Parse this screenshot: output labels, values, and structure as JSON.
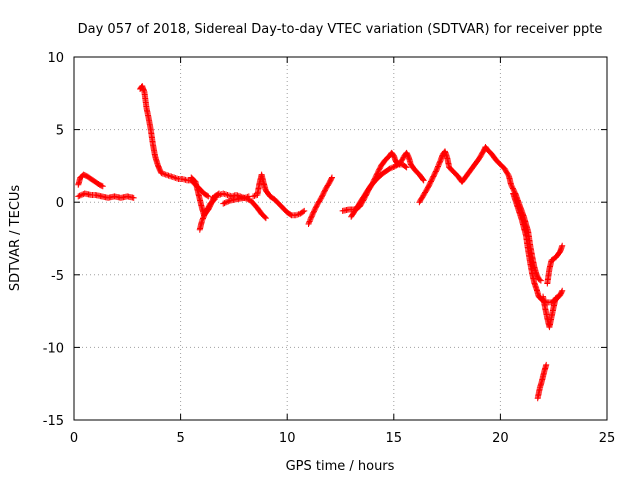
{
  "chart_data": {
    "type": "scatter",
    "title": "Day 057 of 2018, Sidereal Day-to-day VTEC variation (SDTVAR) for receiver ppte",
    "xlabel": "GPS time / hours",
    "ylabel": "SDTVAR / TECUs",
    "xlim": [
      0,
      25
    ],
    "ylim": [
      -15,
      10
    ],
    "xticks": [
      0,
      5,
      10,
      15,
      20,
      25
    ],
    "yticks": [
      -15,
      -10,
      -5,
      0,
      5,
      10
    ],
    "grid": true,
    "legend": "none",
    "marker": "plus",
    "color": "#ff0000",
    "series": [
      {
        "segments": [
          [
            [
              0.2,
              1.2
            ],
            [
              0.3,
              1.7
            ],
            [
              0.45,
              1.9
            ],
            [
              0.6,
              1.8
            ],
            [
              0.8,
              1.6
            ],
            [
              1.0,
              1.4
            ],
            [
              1.2,
              1.2
            ],
            [
              1.35,
              1.1
            ]
          ],
          [
            [
              0.2,
              0.4
            ],
            [
              0.5,
              0.6
            ],
            [
              0.8,
              0.5
            ],
            [
              1.0,
              0.5
            ],
            [
              1.3,
              0.4
            ],
            [
              1.6,
              0.3
            ],
            [
              1.9,
              0.4
            ],
            [
              2.2,
              0.3
            ],
            [
              2.5,
              0.4
            ],
            [
              2.8,
              0.3
            ]
          ],
          [
            [
              3.1,
              7.8
            ],
            [
              3.2,
              8.0
            ],
            [
              3.3,
              7.6
            ],
            [
              3.4,
              6.5
            ],
            [
              3.5,
              5.8
            ],
            [
              3.6,
              5.0
            ],
            [
              3.7,
              4.0
            ],
            [
              3.8,
              3.2
            ],
            [
              3.9,
              2.7
            ],
            [
              4.0,
              2.3
            ],
            [
              4.1,
              2.0
            ],
            [
              4.3,
              1.9
            ],
            [
              4.5,
              1.8
            ],
            [
              4.7,
              1.7
            ],
            [
              4.9,
              1.6
            ],
            [
              5.1,
              1.6
            ],
            [
              5.3,
              1.5
            ],
            [
              5.5,
              1.5
            ],
            [
              5.7,
              1.2
            ],
            [
              5.9,
              0.9
            ],
            [
              6.1,
              0.6
            ],
            [
              6.3,
              0.4
            ]
          ],
          [
            [
              5.5,
              1.7
            ],
            [
              5.7,
              1.4
            ],
            [
              5.8,
              0.8
            ],
            [
              5.9,
              0.2
            ],
            [
              6.0,
              -0.4
            ],
            [
              6.1,
              -0.9
            ],
            [
              6.3,
              -0.5
            ],
            [
              6.4,
              -0.2
            ],
            [
              6.5,
              0.1
            ],
            [
              6.6,
              0.4
            ],
            [
              6.8,
              0.6
            ]
          ],
          [
            [
              5.9,
              -1.9
            ],
            [
              6.0,
              -1.3
            ],
            [
              6.2,
              -0.6
            ],
            [
              6.4,
              -0.1
            ],
            [
              6.6,
              0.2
            ]
          ],
          [
            [
              6.5,
              0.3
            ],
            [
              6.8,
              0.5
            ],
            [
              7.0,
              0.6
            ],
            [
              7.2,
              0.5
            ],
            [
              7.4,
              0.4
            ],
            [
              7.6,
              0.5
            ],
            [
              7.8,
              0.4
            ],
            [
              8.0,
              0.3
            ],
            [
              8.2,
              0.4
            ]
          ],
          [
            [
              7.0,
              -0.1
            ],
            [
              7.3,
              0.1
            ],
            [
              7.6,
              0.2
            ],
            [
              8.0,
              0.3
            ],
            [
              8.3,
              0.1
            ],
            [
              8.6,
              -0.4
            ],
            [
              8.8,
              -0.8
            ],
            [
              9.0,
              -1.1
            ]
          ],
          [
            [
              8.4,
              0.4
            ],
            [
              8.6,
              0.5
            ],
            [
              8.7,
              1.3
            ],
            [
              8.8,
              1.9
            ],
            [
              8.9,
              1.3
            ],
            [
              9.0,
              0.8
            ],
            [
              9.2,
              0.4
            ],
            [
              9.4,
              0.2
            ],
            [
              9.6,
              -0.1
            ],
            [
              9.8,
              -0.4
            ],
            [
              10.0,
              -0.7
            ],
            [
              10.2,
              -0.9
            ],
            [
              10.4,
              -0.9
            ],
            [
              10.6,
              -0.8
            ],
            [
              10.8,
              -0.6
            ]
          ],
          [
            [
              11.0,
              -1.5
            ],
            [
              11.2,
              -0.8
            ],
            [
              11.4,
              -0.2
            ],
            [
              11.6,
              0.3
            ],
            [
              11.8,
              0.9
            ],
            [
              12.0,
              1.4
            ],
            [
              12.1,
              1.7
            ]
          ],
          [
            [
              12.6,
              -0.6
            ],
            [
              12.9,
              -0.5
            ],
            [
              13.2,
              -0.5
            ],
            [
              13.4,
              -0.3
            ],
            [
              13.6,
              0.2
            ],
            [
              13.8,
              0.8
            ],
            [
              14.0,
              1.3
            ],
            [
              14.2,
              1.9
            ],
            [
              14.4,
              2.5
            ],
            [
              14.6,
              2.9
            ],
            [
              14.8,
              3.2
            ],
            [
              14.9,
              3.4
            ],
            [
              15.0,
              3.2
            ],
            [
              15.1,
              2.8
            ],
            [
              15.2,
              2.6
            ],
            [
              15.4,
              2.6
            ],
            [
              15.6,
              2.4
            ]
          ],
          [
            [
              13.0,
              -1.0
            ],
            [
              13.3,
              -0.3
            ],
            [
              13.6,
              0.4
            ],
            [
              13.9,
              1.1
            ],
            [
              14.2,
              1.6
            ],
            [
              14.5,
              2.0
            ],
            [
              14.8,
              2.3
            ],
            [
              15.1,
              2.5
            ],
            [
              15.3,
              2.7
            ],
            [
              15.5,
              3.2
            ],
            [
              15.6,
              3.4
            ],
            [
              15.7,
              3.1
            ],
            [
              15.8,
              2.6
            ],
            [
              16.0,
              2.2
            ],
            [
              16.2,
              1.9
            ],
            [
              16.4,
              1.5
            ]
          ],
          [
            [
              16.2,
              0.0
            ],
            [
              16.4,
              0.5
            ],
            [
              16.6,
              1.0
            ],
            [
              16.8,
              1.6
            ],
            [
              17.0,
              2.2
            ],
            [
              17.2,
              2.9
            ],
            [
              17.3,
              3.3
            ],
            [
              17.4,
              3.5
            ],
            [
              17.5,
              3.1
            ],
            [
              17.6,
              2.4
            ],
            [
              17.8,
              2.1
            ],
            [
              18.0,
              1.8
            ],
            [
              18.2,
              1.4
            ],
            [
              18.4,
              1.8
            ],
            [
              18.6,
              2.2
            ],
            [
              18.8,
              2.6
            ],
            [
              19.0,
              3.0
            ],
            [
              19.2,
              3.5
            ],
            [
              19.3,
              3.8
            ],
            [
              19.4,
              3.6
            ],
            [
              19.6,
              3.3
            ],
            [
              19.8,
              2.9
            ],
            [
              20.0,
              2.6
            ],
            [
              20.2,
              2.3
            ],
            [
              20.4,
              1.8
            ],
            [
              20.5,
              1.2
            ],
            [
              20.7,
              0.6
            ],
            [
              20.9,
              -0.2
            ],
            [
              21.1,
              -1.0
            ],
            [
              21.3,
              -2.0
            ],
            [
              21.4,
              -3.0
            ],
            [
              21.5,
              -3.8
            ],
            [
              21.6,
              -4.5
            ],
            [
              21.7,
              -5.0
            ],
            [
              21.8,
              -5.3
            ],
            [
              21.9,
              -5.4
            ]
          ],
          [
            [
              20.6,
              0.6
            ],
            [
              20.8,
              -0.3
            ],
            [
              21.0,
              -1.2
            ],
            [
              21.2,
              -2.3
            ],
            [
              21.3,
              -3.3
            ],
            [
              21.4,
              -4.2
            ],
            [
              21.5,
              -5.0
            ],
            [
              21.6,
              -5.6
            ],
            [
              21.7,
              -6.0
            ],
            [
              21.8,
              -6.5
            ],
            [
              22.0,
              -6.8
            ],
            [
              22.2,
              -6.9
            ],
            [
              22.4,
              -6.9
            ],
            [
              22.6,
              -6.7
            ],
            [
              22.8,
              -6.4
            ],
            [
              22.9,
              -6.1
            ]
          ],
          [
            [
              22.0,
              -6.5
            ],
            [
              22.1,
              -7.3
            ],
            [
              22.2,
              -8.0
            ],
            [
              22.3,
              -8.6
            ],
            [
              22.4,
              -7.9
            ],
            [
              22.5,
              -7.2
            ],
            [
              22.6,
              -6.6
            ],
            [
              22.7,
              -6.5
            ]
          ],
          [
            [
              22.2,
              -5.6
            ],
            [
              22.3,
              -4.6
            ],
            [
              22.4,
              -4.0
            ],
            [
              22.6,
              -3.8
            ],
            [
              22.8,
              -3.4
            ],
            [
              22.9,
              -3.0
            ]
          ],
          [
            [
              21.75,
              -13.5
            ],
            [
              21.85,
              -12.8
            ],
            [
              21.95,
              -12.3
            ],
            [
              22.05,
              -11.7
            ],
            [
              22.15,
              -11.2
            ]
          ]
        ]
      }
    ]
  }
}
